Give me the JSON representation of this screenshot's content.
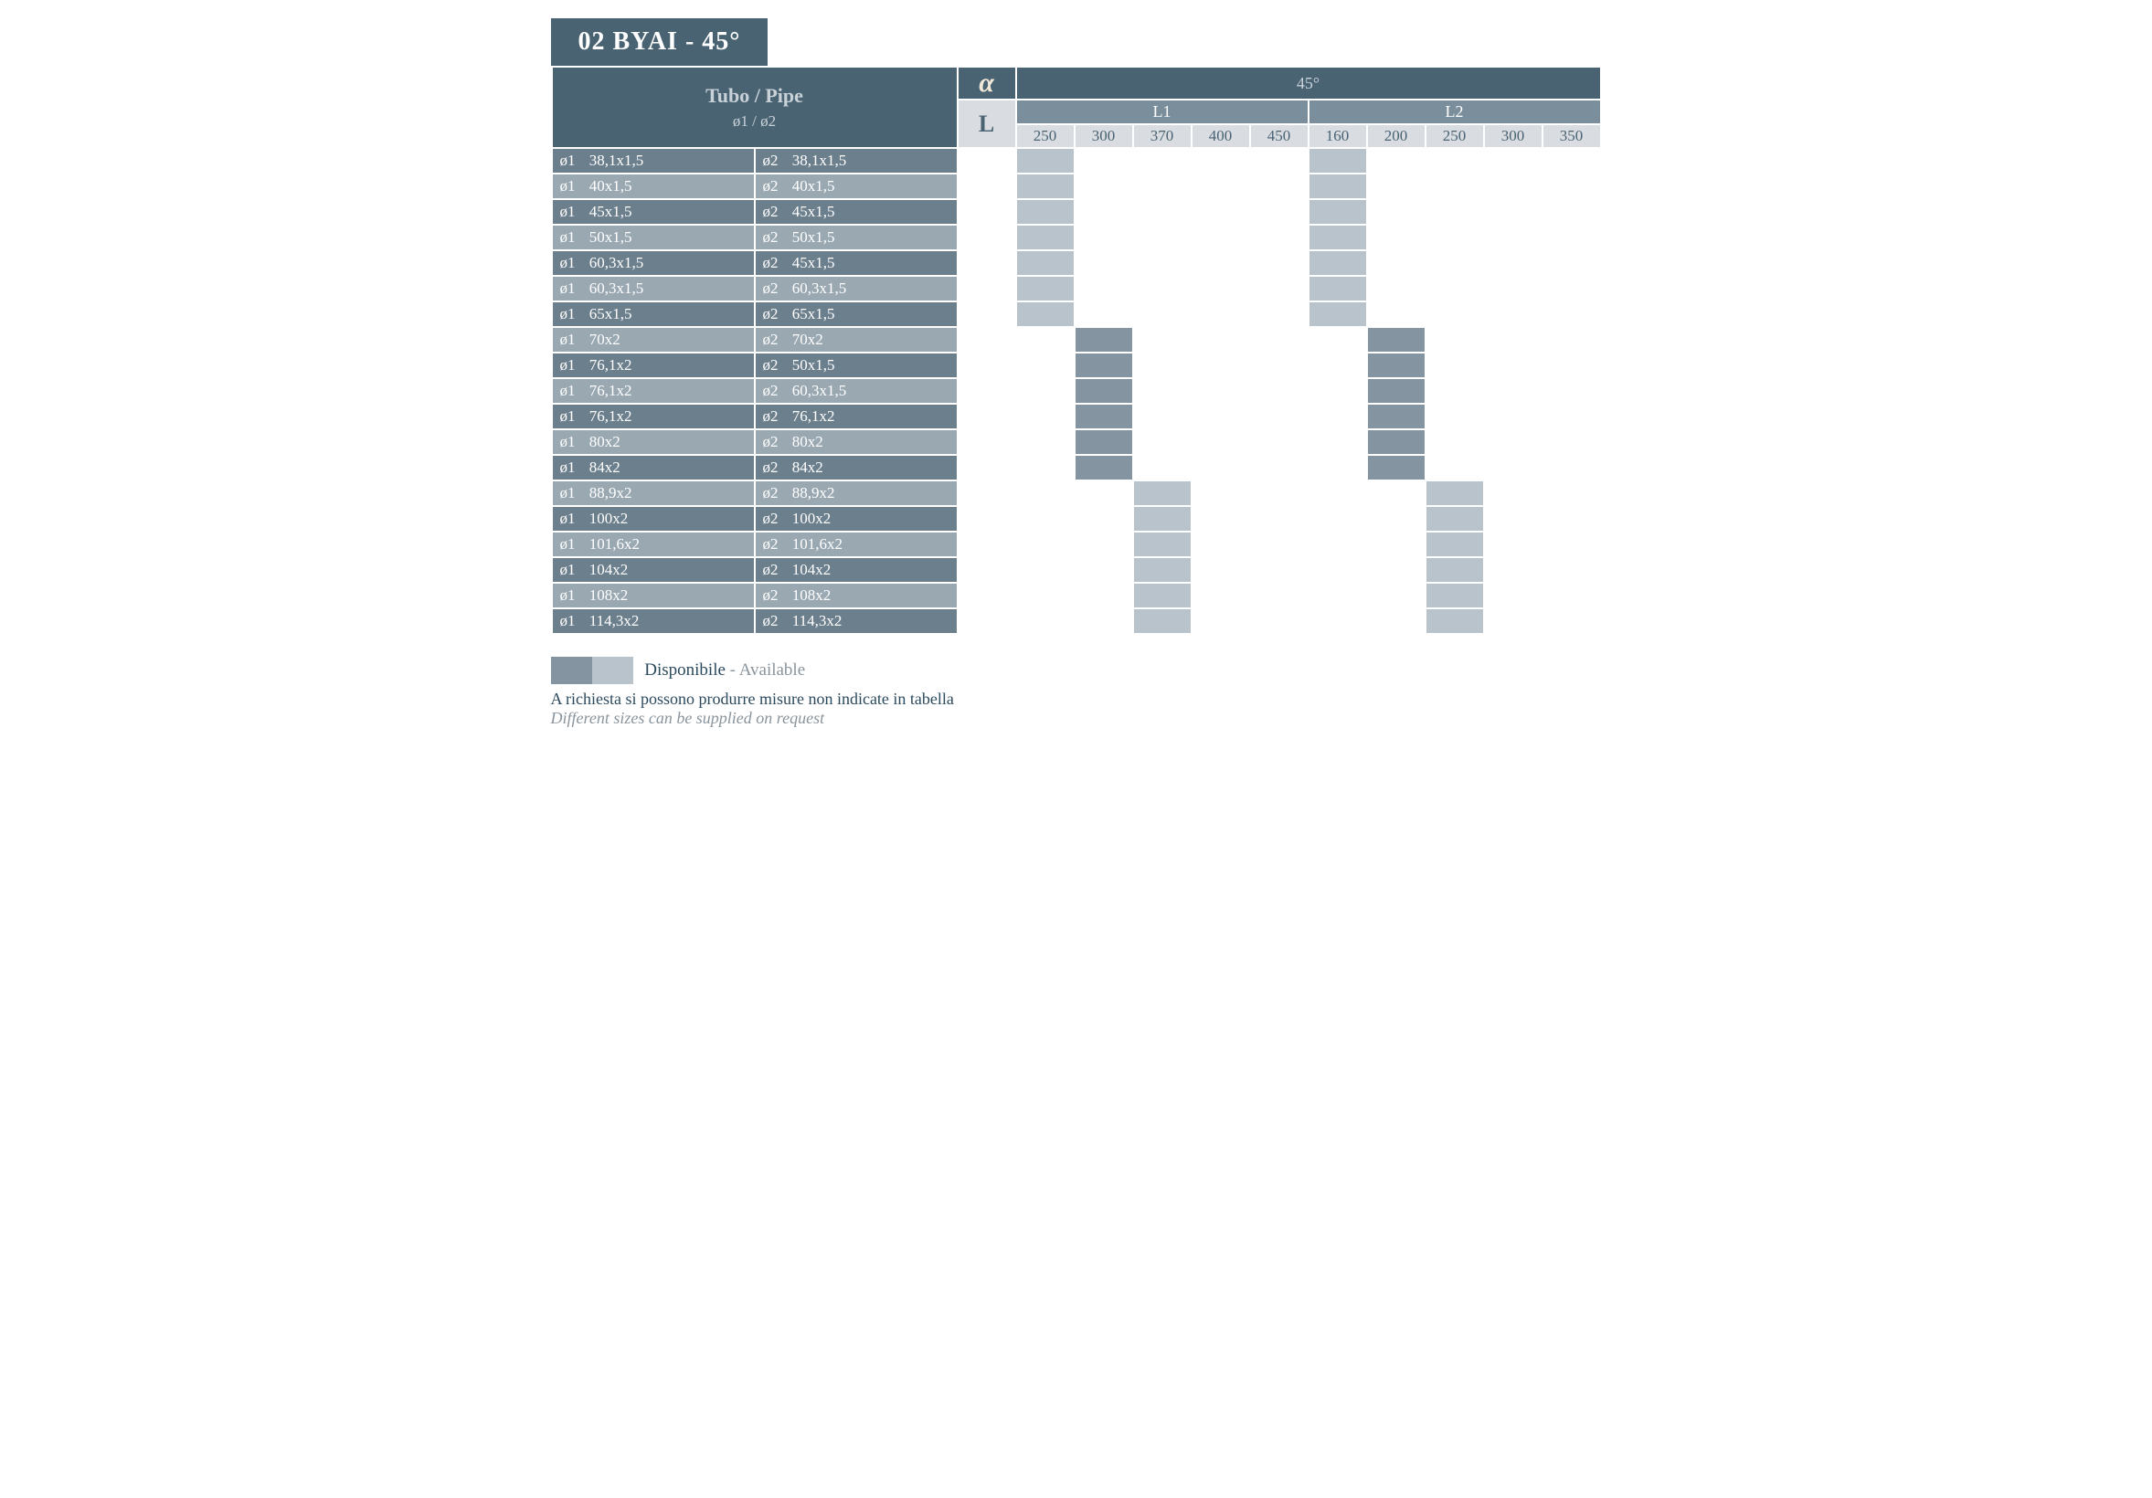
{
  "colors": {
    "hdr_dark": "#4a6373",
    "hdr_mid": "#7a8e9c",
    "hdr_light": "#d9dde1",
    "row_dark": "#6c7f8c",
    "row_light": "#9aa8b2",
    "avail_dark": "#8495a1",
    "avail_light": "#b9c3cb",
    "white": "#ffffff",
    "text_dark": "#2c4a5e",
    "text_light": "#c9d2d8",
    "text_mid": "#8a949c"
  },
  "title": "02 BYAI - 45°",
  "header": {
    "pipe_main": "Tubo / Pipe",
    "pipe_sub": "ø1 / ø2",
    "alpha": "α",
    "L": "L",
    "angle": "45°",
    "L1": "L1",
    "L2": "L2",
    "L1_sizes": [
      "250",
      "300",
      "370",
      "400",
      "450"
    ],
    "L2_sizes": [
      "160",
      "200",
      "250",
      "300",
      "350"
    ]
  },
  "rows": [
    {
      "p1": "38,1x1,5",
      "p2": "38,1x1,5",
      "avail": [
        0,
        5
      ],
      "shade": "light"
    },
    {
      "p1": "40x1,5",
      "p2": "40x1,5",
      "avail": [
        0,
        5
      ],
      "shade": "light"
    },
    {
      "p1": "45x1,5",
      "p2": "45x1,5",
      "avail": [
        0,
        5
      ],
      "shade": "light"
    },
    {
      "p1": "50x1,5",
      "p2": "50x1,5",
      "avail": [
        0,
        5
      ],
      "shade": "light"
    },
    {
      "p1": "60,3x1,5",
      "p2": "45x1,5",
      "avail": [
        0,
        5
      ],
      "shade": "light"
    },
    {
      "p1": "60,3x1,5",
      "p2": "60,3x1,5",
      "avail": [
        0,
        5
      ],
      "shade": "light"
    },
    {
      "p1": "65x1,5",
      "p2": "65x1,5",
      "avail": [
        0,
        5
      ],
      "shade": "light"
    },
    {
      "p1": "70x2",
      "p2": "70x2",
      "avail": [
        1,
        6
      ],
      "shade": "dark"
    },
    {
      "p1": "76,1x2",
      "p2": "50x1,5",
      "avail": [
        1,
        6
      ],
      "shade": "dark"
    },
    {
      "p1": "76,1x2",
      "p2": "60,3x1,5",
      "avail": [
        1,
        6
      ],
      "shade": "dark"
    },
    {
      "p1": "76,1x2",
      "p2": "76,1x2",
      "avail": [
        1,
        6
      ],
      "shade": "dark"
    },
    {
      "p1": "80x2",
      "p2": "80x2",
      "avail": [
        1,
        6
      ],
      "shade": "dark"
    },
    {
      "p1": "84x2",
      "p2": "84x2",
      "avail": [
        1,
        6
      ],
      "shade": "dark"
    },
    {
      "p1": "88,9x2",
      "p2": "88,9x2",
      "avail": [
        2,
        7
      ],
      "shade": "light"
    },
    {
      "p1": "100x2",
      "p2": "100x2",
      "avail": [
        2,
        7
      ],
      "shade": "light"
    },
    {
      "p1": "101,6x2",
      "p2": "101,6x2",
      "avail": [
        2,
        7
      ],
      "shade": "light"
    },
    {
      "p1": "104x2",
      "p2": "104x2",
      "avail": [
        2,
        7
      ],
      "shade": "light"
    },
    {
      "p1": "108x2",
      "p2": "108x2",
      "avail": [
        2,
        7
      ],
      "shade": "light"
    },
    {
      "p1": "114,3x2",
      "p2": "114,3x2",
      "avail": [
        2,
        7
      ],
      "shade": "light"
    }
  ],
  "legend": {
    "disponibile": "Disponibile",
    "available": " - Available"
  },
  "footnote": {
    "it": "A richiesta si possono produrre misure non indicate in tabella",
    "en": "Different sizes can be supplied on request"
  }
}
